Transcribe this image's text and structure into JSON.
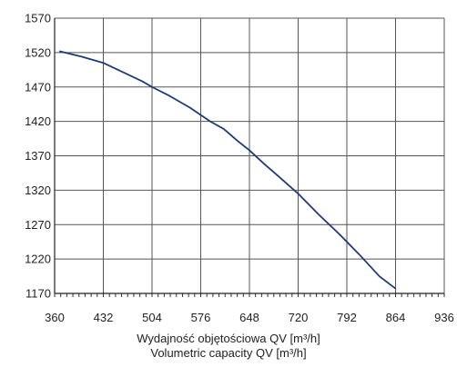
{
  "chart_data": {
    "type": "line",
    "title": "",
    "xlabel_lines": [
      "Wydajność objętościowa QV [m³/h]",
      "Volumetric capacity QV [m³/h]"
    ],
    "ylabel": "",
    "xlim": [
      360,
      936
    ],
    "ylim": [
      1170,
      1570
    ],
    "x_ticks": [
      360,
      432,
      504,
      576,
      648,
      720,
      792,
      864,
      936
    ],
    "y_ticks": [
      1170,
      1220,
      1270,
      1320,
      1370,
      1420,
      1470,
      1520,
      1570
    ],
    "grid": true,
    "series_color": "#1f3a7a",
    "series": [
      {
        "x": [
          367,
          400,
          432,
          460,
          490,
          504,
          530,
          560,
          590,
          610,
          630,
          648,
          670,
          690,
          720,
          750,
          780,
          810,
          840,
          864
        ],
        "y": [
          1522,
          1514,
          1505,
          1492,
          1478,
          1470,
          1457,
          1440,
          1420,
          1409,
          1392,
          1378,
          1358,
          1341,
          1315,
          1285,
          1257,
          1227,
          1195,
          1177
        ]
      }
    ]
  }
}
